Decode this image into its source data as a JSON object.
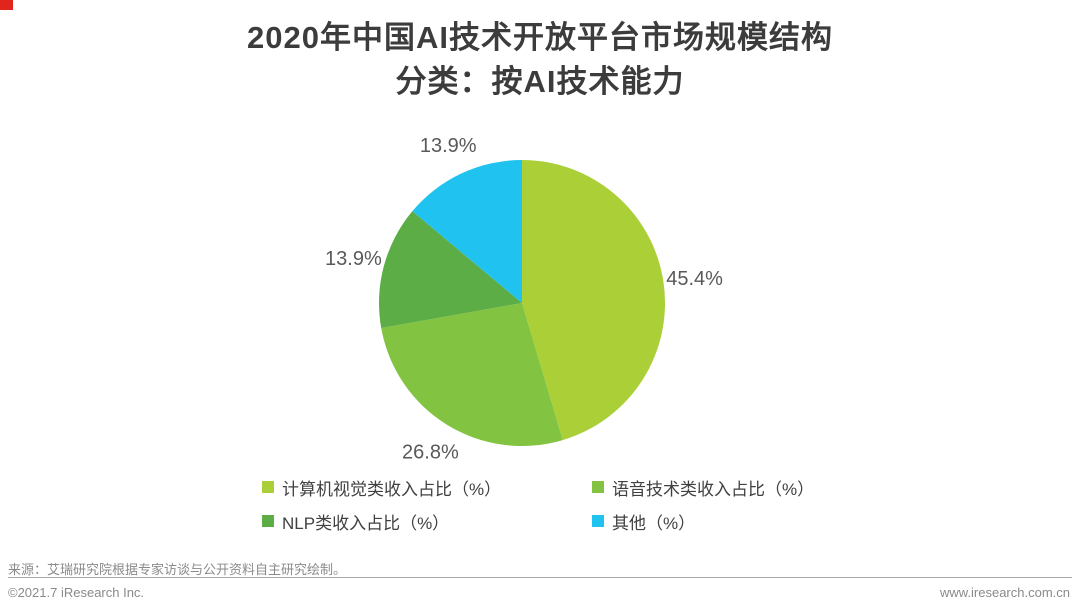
{
  "brand": {
    "logo_color": "#e1251b"
  },
  "title": {
    "line1": "2020年中国AI技术开放平台市场规模结构",
    "line2": "分类：按AI技术能力"
  },
  "chart_data": {
    "type": "pie",
    "title": "2020年中国AI技术开放平台市场规模结构",
    "subtitle": "分类：按AI技术能力",
    "unit": "%",
    "label_suffix": "%",
    "start_angle_deg": 0,
    "direction": "clockwise",
    "legend_position": "bottom",
    "slices": [
      {
        "label": "计算机视觉类收入占比（%）",
        "value": 45.4,
        "color": "#abd037"
      },
      {
        "label": "语音技术类收入占比（%）",
        "value": 26.8,
        "color": "#82c341"
      },
      {
        "label": "NLP类收入占比（%）",
        "value": 13.9,
        "color": "#5cad46"
      },
      {
        "label": "其他（%）",
        "value": 13.9,
        "color": "#20c3ef"
      }
    ],
    "text_color": "#595959"
  },
  "footer": {
    "source": "来源：艾瑞研究院根据专家访谈与公开资料自主研究绘制。",
    "copyright": "©2021.7 iResearch Inc.",
    "website": "www.iresearch.com.cn"
  }
}
